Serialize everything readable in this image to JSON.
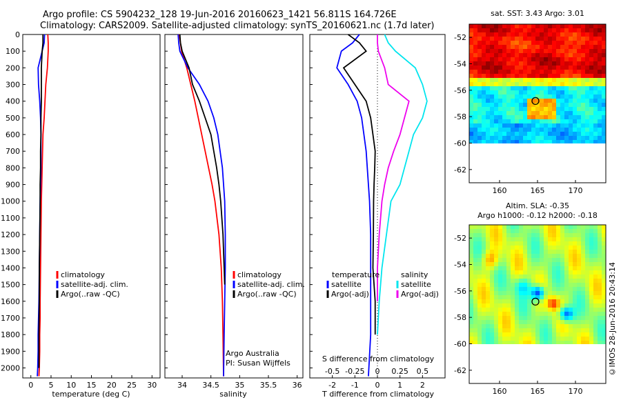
{
  "header": {
    "line1": "Argo profile: CS 5904232_128 19-Jun-2016 20160623_1421 56.811S 164.726E",
    "line2": "Climatology: CARS2009. Satellite-adjusted climatology: synTS_20160621.nc (1.7d later)"
  },
  "credit": "©IMOS 28-Jun-2016 20:43:14",
  "colors": {
    "climatology": "#ff0000",
    "satellite": "#0000ff",
    "argo": "#000000",
    "sal_satellite": "#00e5ee",
    "sal_argo": "#ee00ee"
  },
  "chart_data": [
    {
      "type": "line",
      "xlabel": "temperature (deg C)",
      "ylabel": "",
      "xlim": [
        -2,
        32
      ],
      "ylim": [
        2060,
        0
      ],
      "xticks": [
        "0",
        "5",
        "10",
        "15",
        "20",
        "25",
        "30"
      ],
      "yticks": [
        "0",
        "100",
        "200",
        "300",
        "400",
        "500",
        "600",
        "700",
        "800",
        "900",
        "1000",
        "1100",
        "1200",
        "1300",
        "1400",
        "1500",
        "1600",
        "1700",
        "1800",
        "1900",
        "2000"
      ],
      "legend": [
        "climatology",
        "satellite-adj. clim.",
        "Argo(..raw -QC)"
      ],
      "series": [
        {
          "name": "climatology",
          "color": "#ff0000",
          "x": [
            4.2,
            4.3,
            4.3,
            4.1,
            3.7,
            3.5,
            3.3,
            3.0,
            2.9,
            2.8,
            2.7,
            2.6,
            2.5,
            2.4,
            2.3,
            2.3,
            2.2,
            2.2,
            2.1,
            2.0
          ],
          "y": [
            0,
            50,
            100,
            200,
            300,
            400,
            500,
            600,
            700,
            800,
            900,
            1000,
            1200,
            1400,
            1600,
            1700,
            1800,
            1900,
            2000,
            2050
          ]
        },
        {
          "name": "satellite-adj. clim.",
          "color": "#0000ff",
          "x": [
            3.4,
            3.3,
            2.8,
            1.8,
            1.9,
            2.2,
            2.4,
            2.5,
            2.5,
            2.5,
            2.4,
            2.3,
            2.2,
            2.1,
            2.0,
            1.9,
            1.8,
            1.8,
            1.7,
            1.6
          ],
          "y": [
            0,
            50,
            100,
            200,
            300,
            400,
            500,
            600,
            700,
            800,
            900,
            1000,
            1200,
            1400,
            1600,
            1700,
            1800,
            1900,
            2000,
            2050
          ]
        },
        {
          "name": "Argo(..raw -QC)",
          "color": "#000000",
          "x": [
            3.0,
            3.0,
            2.8,
            2.6,
            2.6,
            2.6,
            2.5,
            2.5,
            2.4,
            2.4,
            2.3,
            2.3,
            2.2,
            2.1,
            2.1,
            2.0,
            2.0
          ],
          "y": [
            0,
            50,
            100,
            200,
            300,
            400,
            500,
            600,
            700,
            800,
            900,
            1000,
            1200,
            1400,
            1600,
            1800,
            2000
          ]
        }
      ]
    },
    {
      "type": "line",
      "xlabel": "salinity",
      "ylabel": "",
      "xlim": [
        33.7,
        36.1
      ],
      "ylim": [
        2060,
        0
      ],
      "xticks": [
        "34",
        "34.5",
        "35",
        "35.5",
        "36"
      ],
      "legend": [
        "climatology",
        "satellite-adj. clim.",
        "Argo(..raw -QC)"
      ],
      "annotations": [
        "Argo Australia",
        "PI: Susan Wijffels"
      ],
      "series": [
        {
          "name": "climatology",
          "color": "#ff0000",
          "x": [
            33.95,
            33.97,
            33.99,
            34.08,
            34.15,
            34.22,
            34.28,
            34.34,
            34.4,
            34.46,
            34.52,
            34.57,
            34.64,
            34.68,
            34.7,
            34.71,
            34.72
          ],
          "y": [
            0,
            50,
            100,
            200,
            300,
            400,
            500,
            600,
            700,
            800,
            900,
            1000,
            1200,
            1400,
            1600,
            1800,
            2050
          ]
        },
        {
          "name": "satellite-adj. clim.",
          "color": "#0000ff",
          "x": [
            33.93,
            33.94,
            33.96,
            34.1,
            34.3,
            34.45,
            34.55,
            34.62,
            34.66,
            34.7,
            34.72,
            34.74,
            34.75,
            34.75,
            34.74,
            34.73,
            34.72
          ],
          "y": [
            0,
            50,
            100,
            200,
            300,
            400,
            500,
            600,
            700,
            800,
            900,
            1000,
            1200,
            1400,
            1600,
            1800,
            2050
          ]
        },
        {
          "name": "Argo(..raw -QC)",
          "color": "#000000",
          "x": [
            33.96,
            33.97,
            34.0,
            34.12,
            34.18,
            34.3,
            34.4,
            34.5,
            34.55,
            34.6,
            34.64,
            34.67,
            34.71,
            34.73,
            34.74
          ],
          "y": [
            0,
            50,
            100,
            200,
            300,
            400,
            500,
            600,
            700,
            800,
            900,
            1000,
            1200,
            1400,
            1500
          ]
        }
      ]
    },
    {
      "type": "line",
      "xlabel": "T difference from climatology",
      "xlabel_top": "S difference from climatology",
      "xlim_T": [
        -3,
        3
      ],
      "xticks_T": [
        "-2",
        "-1",
        "0",
        "1",
        "2"
      ],
      "xticks_S": [
        "-0.5",
        "-0.25",
        "0",
        "0.25",
        "0.5"
      ],
      "ylim": [
        2060,
        0
      ],
      "legend_titles": [
        "temperature",
        "salinity"
      ],
      "legend": [
        "satellite",
        "Argo(-adj)",
        "satellite",
        "Argo(-adj)"
      ],
      "series": [
        {
          "name": "temperature satellite",
          "color": "#0000ff",
          "x": [
            -0.8,
            -1.1,
            -1.6,
            -1.8,
            -1.3,
            -0.9,
            -0.7,
            -0.6,
            -0.5,
            -0.45,
            -0.4,
            -0.35,
            -0.3,
            -0.3,
            -0.3,
            -0.3,
            -0.4
          ],
          "y": [
            0,
            50,
            100,
            200,
            300,
            400,
            500,
            600,
            700,
            800,
            900,
            1000,
            1200,
            1400,
            1600,
            1800,
            2050
          ]
        },
        {
          "name": "temperature Argo(-adj)",
          "color": "#000000",
          "x": [
            -1.3,
            -0.8,
            -0.5,
            -1.5,
            -1.0,
            -0.5,
            -0.3,
            -0.2,
            -0.1,
            -0.12,
            -0.15,
            -0.17,
            -0.18,
            -0.2,
            -0.1,
            -0.1
          ],
          "y": [
            0,
            50,
            100,
            200,
            300,
            400,
            500,
            600,
            700,
            800,
            900,
            1000,
            1200,
            1400,
            1600,
            1800
          ]
        },
        {
          "name": "salinity satellite",
          "color": "#00e5ee",
          "x": [
            0.08,
            0.12,
            0.2,
            0.42,
            0.5,
            0.55,
            0.5,
            0.4,
            0.35,
            0.3,
            0.25,
            0.15,
            0.1,
            0.05,
            0.02,
            0.0
          ],
          "y": [
            0,
            50,
            100,
            200,
            300,
            400,
            500,
            600,
            700,
            800,
            900,
            1000,
            1200,
            1400,
            1600,
            1800
          ]
        },
        {
          "name": "salinity Argo(-adj)",
          "color": "#ee00ee",
          "x": [
            0.0,
            0.0,
            0.01,
            0.08,
            0.12,
            0.35,
            0.3,
            0.25,
            0.18,
            0.12,
            0.08,
            0.05,
            0.02,
            0.0,
            0.0
          ],
          "y": [
            0,
            50,
            100,
            200,
            300,
            400,
            500,
            600,
            700,
            800,
            900,
            1000,
            1200,
            1400,
            1600
          ]
        }
      ]
    },
    {
      "type": "heatmap",
      "title": "sat. SST: 3.43 Argo: 3.01",
      "xlim": [
        156,
        174
      ],
      "ylim": [
        -63,
        -51
      ],
      "xticks": [
        "160",
        "165",
        "170"
      ],
      "yticks": [
        "-52",
        "-54",
        "-56",
        "-58",
        "-60",
        "-62"
      ],
      "marker": {
        "lon": 164.726,
        "lat": -56.811
      },
      "colormap": "jet"
    },
    {
      "type": "heatmap",
      "title": "Altim. SLA: -0.35",
      "subtitle": "Argo h1000: -0.12 h2000: -0.18",
      "xlim": [
        156,
        174
      ],
      "ylim": [
        -63,
        -51
      ],
      "xticks": [
        "160",
        "165",
        "170"
      ],
      "yticks": [
        "-52",
        "-54",
        "-56",
        "-58",
        "-60",
        "-62"
      ],
      "marker": {
        "lon": 164.726,
        "lat": -56.811
      },
      "colormap": "jet"
    }
  ]
}
